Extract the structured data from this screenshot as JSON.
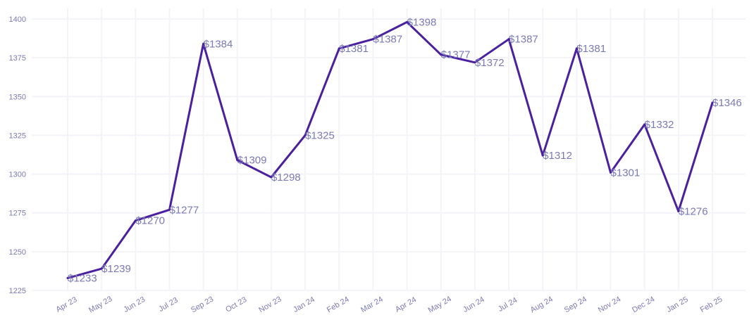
{
  "colors": {
    "line": "#4a1fa0",
    "label": "#7a7ab8",
    "grid": "#f3f3f8",
    "background": "#ffffff"
  },
  "chart_data": {
    "type": "line",
    "title": "",
    "xlabel": "",
    "ylabel": "",
    "ylim": [
      1225,
      1400
    ],
    "yticks": [
      1225,
      1250,
      1275,
      1300,
      1325,
      1350,
      1375,
      1400
    ],
    "categories": [
      "Apr 23",
      "May 23",
      "Jun 23",
      "Jul 23",
      "Sep 23",
      "Oct 23",
      "Nov 23",
      "Jan 24",
      "Feb 24",
      "Mar 24",
      "Apr 24",
      "May 24",
      "Jun 24",
      "Jul 24",
      "Aug 24",
      "Sep 24",
      "Nov 24",
      "Dec 24",
      "Jan 25",
      "Feb 25"
    ],
    "values": [
      1233,
      1239,
      1270,
      1277,
      1384,
      1309,
      1298,
      1325,
      1381,
      1387,
      1398,
      1377,
      1372,
      1387,
      1312,
      1381,
      1301,
      1332,
      1276,
      1346
    ],
    "data_labels": [
      "$1233",
      "$1239",
      "$1270",
      "$1277",
      "$1384",
      "$1309",
      "$1298",
      "$1325",
      "$1381",
      "$1387",
      "$1398",
      "$1377",
      "$1372",
      "$1387",
      "$1312",
      "$1381",
      "$1301",
      "$1332",
      "$1276",
      "$1346"
    ]
  }
}
